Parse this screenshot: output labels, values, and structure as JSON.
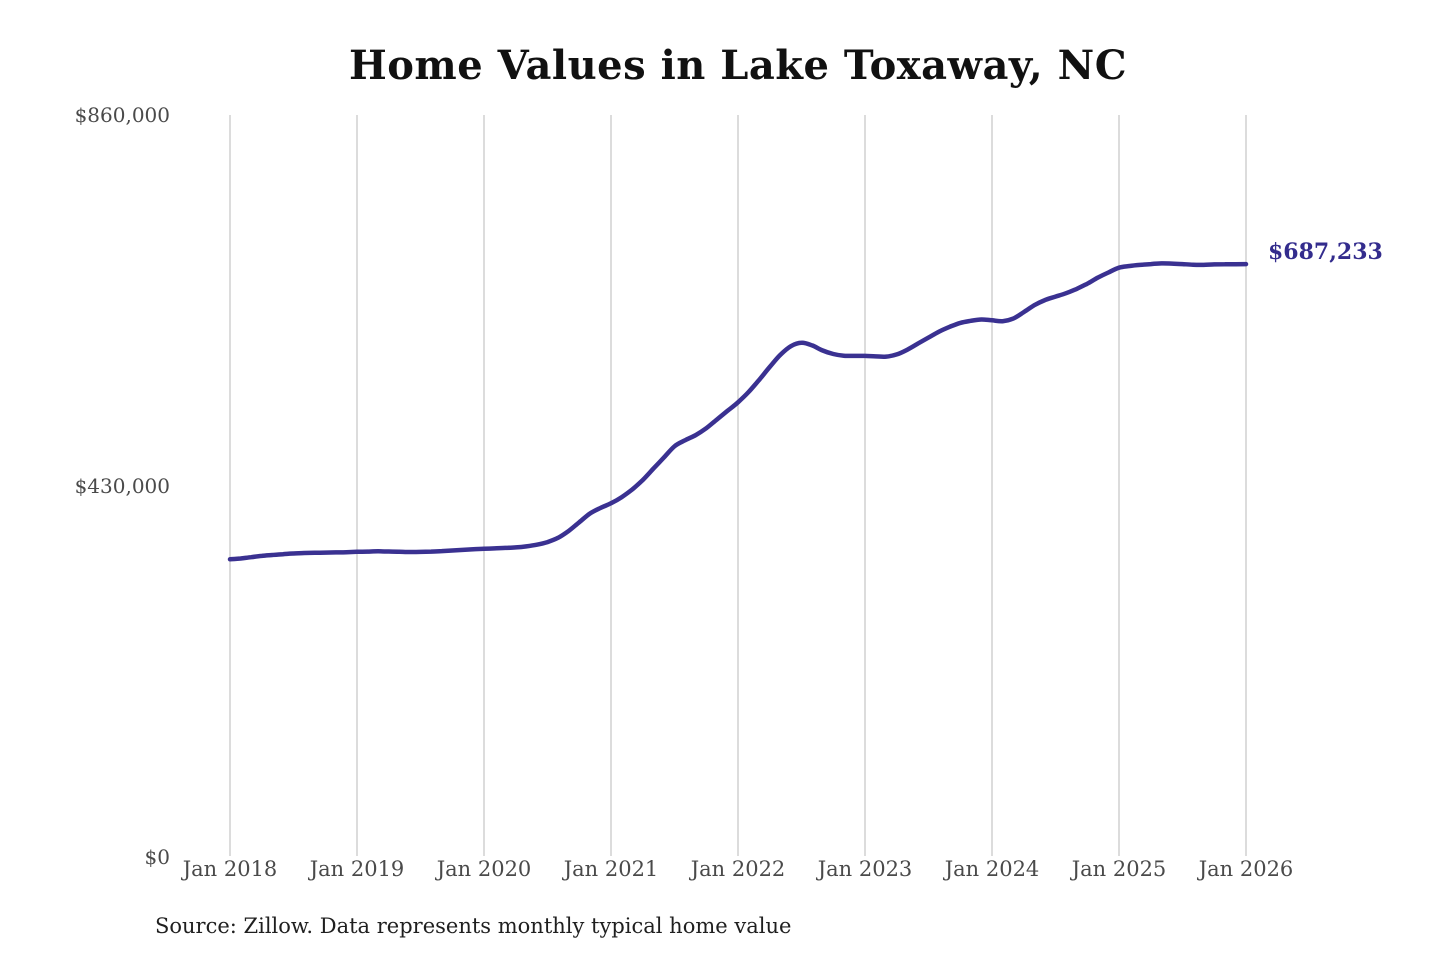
{
  "page": {
    "background_color": "#ffffff"
  },
  "chart_data": {
    "type": "line",
    "title": "Home Values in Lake Toxaway, NC",
    "source_note": "Source: Zillow. Data represents monthly typical home value",
    "series_name": "Monthly typical home value",
    "unit": "USD",
    "x_interval": "monthly",
    "x_start": "Jan 2018",
    "x_end": "Jan 2026",
    "x_tick_labels": [
      "Jan 2018",
      "Jan 2019",
      "Jan 2020",
      "Jan 2021",
      "Jan 2022",
      "Jan 2023",
      "Jan 2024",
      "Jan 2025",
      "Jan 2026"
    ],
    "y_ticks": [
      {
        "label": "$0",
        "value": 0
      },
      {
        "label": "$430,000",
        "value": 430000
      },
      {
        "label": "$860,000",
        "value": 860000
      }
    ],
    "ylim": [
      0,
      860000
    ],
    "grid": "vertical-only",
    "legend": "none",
    "line_color": "#3a3191",
    "label_color": "#332c8d",
    "gridline_color": "#c9c9c9",
    "end_label": "$687,233",
    "end_value": 687233,
    "values": [
      345000,
      346000,
      347500,
      349000,
      350000,
      351000,
      351800,
      352300,
      352600,
      352800,
      353000,
      353300,
      353700,
      354000,
      354300,
      354100,
      353800,
      353500,
      353600,
      354000,
      354600,
      355200,
      355900,
      356600,
      357200,
      357700,
      358200,
      358800,
      360000,
      362000,
      365000,
      370000,
      378000,
      388000,
      398000,
      404500,
      410000,
      417000,
      426000,
      437000,
      450000,
      463000,
      476000,
      483000,
      489000,
      497000,
      507000,
      517000,
      527000,
      539000,
      553000,
      568000,
      582000,
      592000,
      596000,
      593000,
      587000,
      583000,
      581000,
      580800,
      580800,
      580200,
      580000,
      582500,
      588000,
      595000,
      602000,
      609000,
      614500,
      619000,
      621500,
      623000,
      622000,
      621000,
      624000,
      631500,
      639500,
      645500,
      649500,
      653500,
      658500,
      664500,
      671500,
      677500,
      683000,
      685000,
      686300,
      687200,
      688000,
      687800,
      687200,
      686500,
      686300,
      686800,
      687000,
      687100,
      687233
    ]
  }
}
